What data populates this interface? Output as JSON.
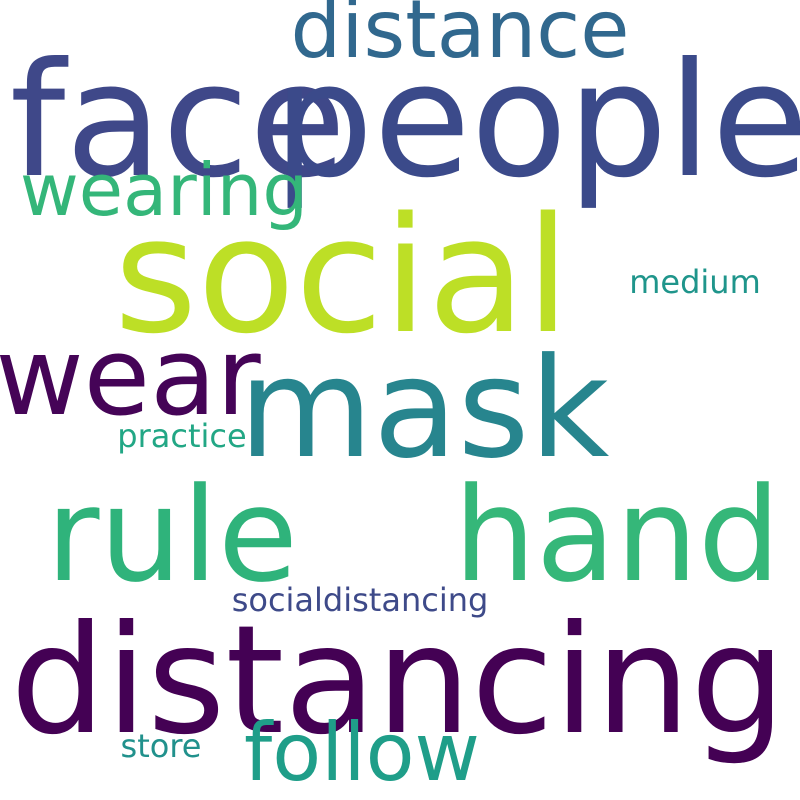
{
  "words": [
    {
      "id": "distancing",
      "text": "distancing",
      "color": "#440154"
    },
    {
      "id": "social",
      "text": "social",
      "color": "#bddf26"
    },
    {
      "id": "people",
      "text": "people",
      "color": "#3b4a8a"
    },
    {
      "id": "face",
      "text": "face",
      "color": "#3f4889"
    },
    {
      "id": "mask",
      "text": "mask",
      "color": "#27858e"
    },
    {
      "id": "hand",
      "text": "hand",
      "color": "#35b779"
    },
    {
      "id": "rule",
      "text": "rule",
      "color": "#2fb37b"
    },
    {
      "id": "wear",
      "text": "wear",
      "color": "#450457"
    },
    {
      "id": "follow",
      "text": "follow",
      "color": "#1f9e89"
    },
    {
      "id": "distance",
      "text": "distance",
      "color": "#31688e"
    },
    {
      "id": "wearing",
      "text": "wearing",
      "color": "#34b679"
    },
    {
      "id": "socialdistancing",
      "text": "socialdistancing",
      "color": "#3e4a89"
    },
    {
      "id": "practice",
      "text": "practice",
      "color": "#22a785"
    },
    {
      "id": "medium",
      "text": "medium",
      "color": "#1f958b"
    },
    {
      "id": "store",
      "text": "store",
      "color": "#21918c"
    }
  ]
}
